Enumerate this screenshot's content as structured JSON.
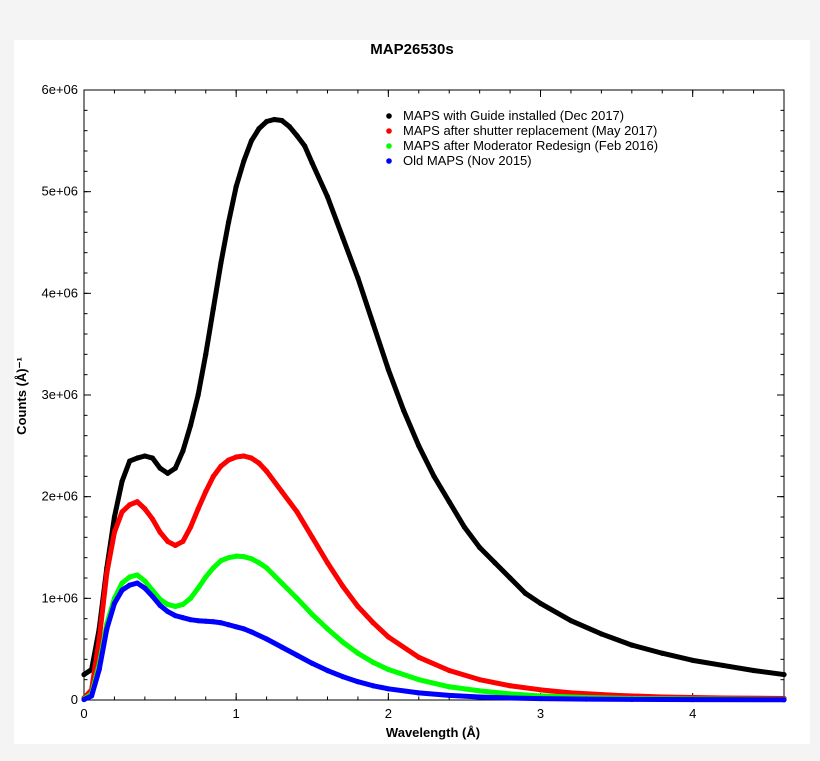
{
  "chart_data": {
    "type": "scatter",
    "title": "MAP26530s",
    "xlabel": "Wavelength (Å)",
    "ylabel": "Counts (Å)⁻¹",
    "xlim": [
      0,
      4.6
    ],
    "ylim": [
      0,
      6000000
    ],
    "x_ticks": [
      {
        "value": 0,
        "label": "0"
      },
      {
        "value": 1,
        "label": "1"
      },
      {
        "value": 2,
        "label": "2"
      },
      {
        "value": 3,
        "label": "3"
      },
      {
        "value": 4,
        "label": "4"
      }
    ],
    "y_ticks": [
      {
        "value": 0,
        "label": "0"
      },
      {
        "value": 1000000,
        "label": "1e+06"
      },
      {
        "value": 2000000,
        "label": "2e+06"
      },
      {
        "value": 3000000,
        "label": "3e+06"
      },
      {
        "value": 4000000,
        "label": "4e+06"
      },
      {
        "value": 5000000,
        "label": "5e+06"
      },
      {
        "value": 6000000,
        "label": "6e+06"
      }
    ],
    "grid": false,
    "legend_position": "top-right",
    "series": [
      {
        "name": "MAPS with Guide installed (Dec 2017)",
        "color": "#000000",
        "x": [
          0.0,
          0.05,
          0.1,
          0.15,
          0.2,
          0.25,
          0.3,
          0.35,
          0.4,
          0.45,
          0.5,
          0.55,
          0.6,
          0.65,
          0.7,
          0.75,
          0.8,
          0.85,
          0.9,
          0.95,
          1.0,
          1.05,
          1.1,
          1.15,
          1.2,
          1.25,
          1.3,
          1.35,
          1.4,
          1.45,
          1.5,
          1.6,
          1.7,
          1.8,
          1.9,
          2.0,
          2.1,
          2.2,
          2.3,
          2.4,
          2.5,
          2.6,
          2.7,
          2.8,
          2.9,
          3.0,
          3.2,
          3.4,
          3.6,
          3.8,
          4.0,
          4.2,
          4.4,
          4.6
        ],
        "y": [
          250000,
          300000,
          700000,
          1300000,
          1800000,
          2150000,
          2350000,
          2380000,
          2400000,
          2380000,
          2280000,
          2230000,
          2280000,
          2450000,
          2700000,
          3000000,
          3400000,
          3850000,
          4300000,
          4700000,
          5050000,
          5300000,
          5500000,
          5620000,
          5690000,
          5710000,
          5700000,
          5640000,
          5550000,
          5450000,
          5280000,
          4950000,
          4550000,
          4150000,
          3700000,
          3250000,
          2850000,
          2500000,
          2200000,
          1950000,
          1700000,
          1500000,
          1350000,
          1200000,
          1050000,
          950000,
          780000,
          650000,
          540000,
          460000,
          390000,
          340000,
          290000,
          250000
        ]
      },
      {
        "name": "MAPS after shutter replacement (May 2017)",
        "color": "#ff0000",
        "x": [
          0.0,
          0.05,
          0.1,
          0.15,
          0.2,
          0.25,
          0.3,
          0.35,
          0.4,
          0.45,
          0.5,
          0.55,
          0.6,
          0.65,
          0.7,
          0.75,
          0.8,
          0.85,
          0.9,
          0.95,
          1.0,
          1.05,
          1.1,
          1.15,
          1.2,
          1.3,
          1.4,
          1.5,
          1.6,
          1.7,
          1.8,
          1.9,
          2.0,
          2.2,
          2.4,
          2.6,
          2.8,
          3.0,
          3.2,
          3.5,
          3.8,
          4.2,
          4.6
        ],
        "y": [
          20000,
          100000,
          600000,
          1250000,
          1650000,
          1850000,
          1920000,
          1950000,
          1880000,
          1780000,
          1650000,
          1560000,
          1520000,
          1560000,
          1700000,
          1880000,
          2050000,
          2200000,
          2300000,
          2360000,
          2390000,
          2400000,
          2380000,
          2330000,
          2250000,
          2050000,
          1850000,
          1600000,
          1350000,
          1120000,
          920000,
          760000,
          620000,
          420000,
          290000,
          200000,
          140000,
          100000,
          70000,
          45000,
          30000,
          20000,
          15000
        ]
      },
      {
        "name": "MAPS after Moderator Redesign (Feb 2016)",
        "color": "#00ff00",
        "x": [
          0.0,
          0.05,
          0.1,
          0.15,
          0.2,
          0.25,
          0.3,
          0.35,
          0.4,
          0.45,
          0.5,
          0.55,
          0.6,
          0.65,
          0.7,
          0.75,
          0.8,
          0.85,
          0.9,
          0.95,
          1.0,
          1.05,
          1.1,
          1.15,
          1.2,
          1.3,
          1.4,
          1.5,
          1.6,
          1.7,
          1.8,
          1.9,
          2.0,
          2.2,
          2.4,
          2.6,
          2.8,
          3.0,
          3.3,
          3.6,
          4.0,
          4.6
        ],
        "y": [
          10000,
          60000,
          350000,
          750000,
          1000000,
          1150000,
          1210000,
          1230000,
          1170000,
          1080000,
          990000,
          940000,
          920000,
          940000,
          1000000,
          1100000,
          1210000,
          1300000,
          1370000,
          1400000,
          1415000,
          1410000,
          1390000,
          1350000,
          1300000,
          1150000,
          1000000,
          840000,
          700000,
          570000,
          460000,
          370000,
          300000,
          200000,
          130000,
          90000,
          60000,
          40000,
          25000,
          15000,
          10000,
          5000
        ]
      },
      {
        "name": "Old MAPS (Nov 2015)",
        "color": "#0000ff",
        "x": [
          0.0,
          0.05,
          0.1,
          0.15,
          0.2,
          0.25,
          0.3,
          0.35,
          0.4,
          0.45,
          0.5,
          0.55,
          0.6,
          0.65,
          0.7,
          0.75,
          0.8,
          0.85,
          0.9,
          0.95,
          1.0,
          1.05,
          1.1,
          1.2,
          1.3,
          1.4,
          1.5,
          1.6,
          1.7,
          1.8,
          1.9,
          2.0,
          2.2,
          2.4,
          2.6,
          2.8,
          3.0,
          3.3,
          3.6,
          4.0,
          4.6
        ],
        "y": [
          5000,
          40000,
          300000,
          700000,
          950000,
          1080000,
          1130000,
          1150000,
          1100000,
          1020000,
          930000,
          870000,
          830000,
          810000,
          790000,
          780000,
          775000,
          770000,
          760000,
          740000,
          720000,
          700000,
          670000,
          600000,
          520000,
          440000,
          360000,
          290000,
          230000,
          180000,
          140000,
          110000,
          70000,
          45000,
          30000,
          20000,
          14000,
          9000,
          6000,
          4000,
          2000
        ]
      }
    ]
  }
}
